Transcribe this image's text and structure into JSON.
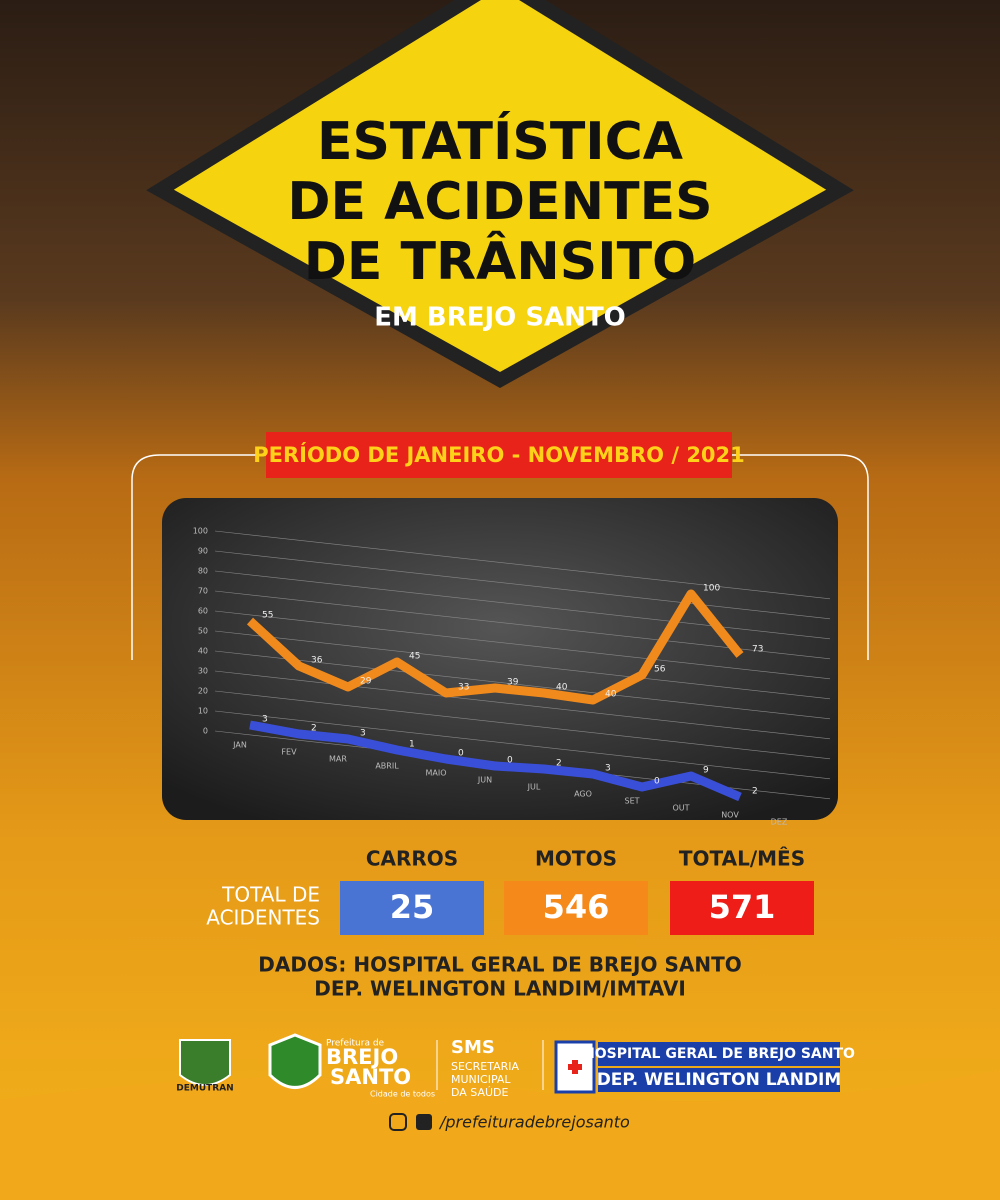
{
  "header": {
    "title_lines": [
      "ESTATÍSTICA",
      "DE ACIDENTES",
      "DE TRÂNSITO"
    ],
    "subtitle": "EM BREJO SANTO",
    "period": "PERÍODO DE JANEIRO - NOVEMBRO / 2021"
  },
  "chart_data": {
    "type": "line",
    "categories": [
      "JAN",
      "FEV",
      "MAR",
      "ABRIL",
      "MAIO",
      "JUN",
      "JUL",
      "AGO",
      "SET",
      "OUT",
      "NOV",
      "DEZ"
    ],
    "series": [
      {
        "name": "MOTOS",
        "color": "#f08a1c",
        "values": [
          55,
          36,
          29,
          45,
          33,
          39,
          40,
          40,
          56,
          100,
          73,
          null
        ]
      },
      {
        "name": "CARROS",
        "color": "#3a4fd8",
        "values": [
          3,
          2,
          3,
          1,
          0,
          0,
          2,
          3,
          0,
          9,
          2,
          null
        ]
      }
    ],
    "ylim": [
      0,
      100
    ],
    "yticks": [
      0,
      10,
      20,
      30,
      40,
      50,
      60,
      70,
      80,
      90,
      100
    ],
    "grid": true
  },
  "totals": {
    "label_lines": [
      "TOTAL DE",
      "ACIDENTES"
    ],
    "total_header": "TOTAL/MÊS",
    "carros": "25",
    "motos": "546",
    "total": "571"
  },
  "source": [
    "DADOS: HOSPITAL GERAL DE BREJO SANTO",
    "DEP. WELINGTON LANDIM/IMTAVI"
  ],
  "footer": {
    "demutran": "DEMUTRAN",
    "pref": "Prefeitura de",
    "brejo": "BREJO",
    "santo": "SANTO",
    "slogan": "Cidade de todos",
    "sms": "SMS",
    "sms_lines": [
      "SECRETARIA",
      "MUNICIPAL",
      "DA SAÚDE"
    ],
    "hospital_lines": [
      "HOSPITAL GERAL DE BREJO SANTO",
      "DEP. WELINGTON LANDIM"
    ],
    "social": "/prefeituradebrejosanto"
  }
}
